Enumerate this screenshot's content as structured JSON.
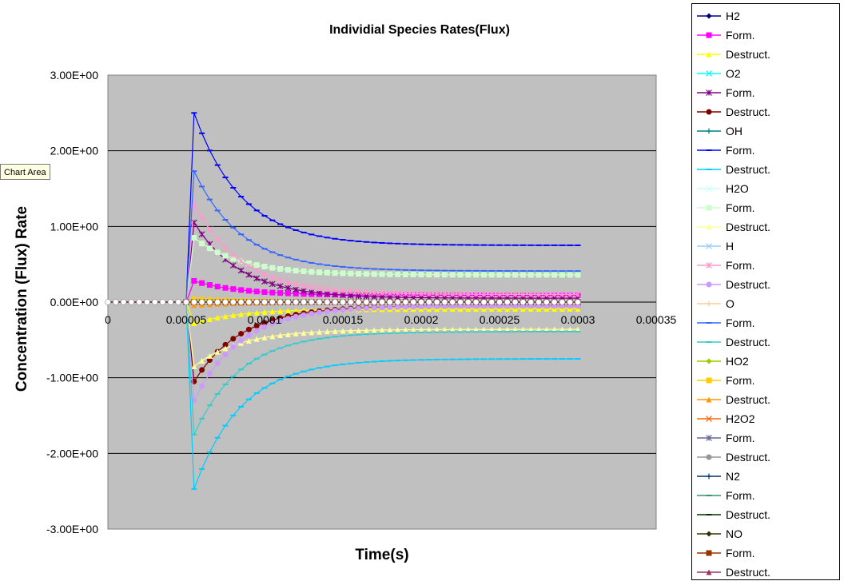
{
  "tooltip": "Chart Area",
  "chart_data": {
    "type": "scatter",
    "title": "Individial Species Rates(Flux)",
    "xlabel": "Time(s)",
    "ylabel": "Concentration (Flux) Rate",
    "xlim": [
      0,
      0.00035
    ],
    "ylim": [
      -3,
      3
    ],
    "x_ticks": [
      "0",
      "0.00005",
      "0.0001",
      "0.00015",
      "0.0002",
      "0.00025",
      "0.0003",
      "0.00035"
    ],
    "y_ticks": [
      "3.00E+00",
      "2.00E+00",
      "1.00E+00",
      "0.00E+00",
      "-1.00E+00",
      "-2.00E+00",
      "-3.00E+00"
    ],
    "grid": "horizontal",
    "plot_background": "#c0c0c0",
    "x_start": 5e-05,
    "x_end": 0.0003,
    "x_step": 5e-06,
    "curve_tau": 3e-05,
    "series": [
      {
        "name": "H2",
        "color": "#000080",
        "marker": "diamond",
        "peak": 0.0,
        "final": 0.0
      },
      {
        "name": "Form.",
        "color": "#ff00ff",
        "marker": "square",
        "peak": 0.28,
        "final": 0.09
      },
      {
        "name": "Destruct.",
        "color": "#ffff00",
        "marker": "triangle",
        "peak": -0.28,
        "final": -0.09
      },
      {
        "name": "O2",
        "color": "#00ffff",
        "marker": "x",
        "peak": 0.0,
        "final": 0.0
      },
      {
        "name": "Form.",
        "color": "#800080",
        "marker": "star",
        "peak": 1.05,
        "final": 0.05
      },
      {
        "name": "Destruct.",
        "color": "#800000",
        "marker": "circle",
        "peak": -1.05,
        "final": -0.05
      },
      {
        "name": "OH",
        "color": "#008080",
        "marker": "plus",
        "peak": 0.0,
        "final": 0.0
      },
      {
        "name": "Form.",
        "color": "#0000ff",
        "marker": "dash",
        "peak": 2.5,
        "final": 0.75
      },
      {
        "name": "Destruct.",
        "color": "#00ccff",
        "marker": "dash",
        "peak": -2.47,
        "final": -0.75
      },
      {
        "name": "H2O",
        "color": "#ccffff",
        "marker": "x",
        "peak": 0.0,
        "final": 0.0
      },
      {
        "name": "Form.",
        "color": "#ccffcc",
        "marker": "square",
        "peak": 0.85,
        "final": 0.36
      },
      {
        "name": "Destruct.",
        "color": "#ffff99",
        "marker": "triangle",
        "peak": -0.85,
        "final": -0.36
      },
      {
        "name": "H",
        "color": "#99ccff",
        "marker": "x",
        "peak": 0.0,
        "final": 0.0
      },
      {
        "name": "Form.",
        "color": "#ff99cc",
        "marker": "star",
        "peak": 1.3,
        "final": 0.1
      },
      {
        "name": "Destruct.",
        "color": "#cc99ff",
        "marker": "circle",
        "peak": -1.3,
        "final": -0.05
      },
      {
        "name": "O",
        "color": "#ffcc99",
        "marker": "plus",
        "peak": 0.0,
        "final": 0.0
      },
      {
        "name": "Form.",
        "color": "#3366ff",
        "marker": "dash",
        "peak": 1.73,
        "final": 0.41
      },
      {
        "name": "Destruct.",
        "color": "#33cccc",
        "marker": "dash",
        "peak": -1.75,
        "final": -0.39
      },
      {
        "name": "HO2",
        "color": "#99cc00",
        "marker": "diamond",
        "peak": 0.02,
        "final": 0.0
      },
      {
        "name": "Form.",
        "color": "#ffcc00",
        "marker": "square",
        "peak": 0.04,
        "final": 0.0
      },
      {
        "name": "Destruct.",
        "color": "#ff9900",
        "marker": "triangle",
        "peak": -0.04,
        "final": 0.0
      },
      {
        "name": "H2O2",
        "color": "#ff6600",
        "marker": "x",
        "peak": 0.0,
        "final": 0.0
      },
      {
        "name": "Form.",
        "color": "#666699",
        "marker": "star",
        "peak": 0.0,
        "final": 0.0
      },
      {
        "name": "Destruct.",
        "color": "#969696",
        "marker": "circle",
        "peak": 0.0,
        "final": 0.0
      },
      {
        "name": "N2",
        "color": "#003366",
        "marker": "plus",
        "peak": 0.0,
        "final": 0.0
      },
      {
        "name": "Form.",
        "color": "#339966",
        "marker": "dash",
        "peak": 0.0,
        "final": 0.0
      },
      {
        "name": "Destruct.",
        "color": "#003300",
        "marker": "dash",
        "peak": 0.0,
        "final": 0.0
      },
      {
        "name": "NO",
        "color": "#333300",
        "marker": "diamond",
        "peak": 0.0,
        "final": 0.0
      },
      {
        "name": "Form.",
        "color": "#993300",
        "marker": "square",
        "peak": 0.0,
        "final": 0.0
      },
      {
        "name": "Destruct.",
        "color": "#993366",
        "marker": "triangle",
        "peak": 0.0,
        "final": 0.0
      }
    ]
  }
}
